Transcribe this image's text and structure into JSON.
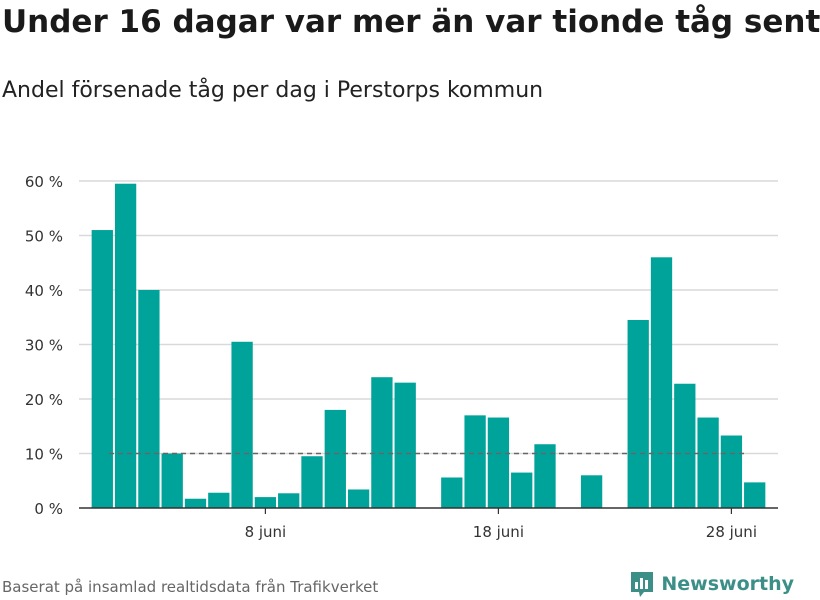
{
  "header": {
    "title": "Under 16 dagar var mer än var tionde tåg sent",
    "subtitle": "Andel försenade tåg per dag i Perstorps kommun"
  },
  "footer": {
    "source": "Baserat på insamlad realtidsdata från Trafikverket",
    "brand": "Newsworthy",
    "brand_icon": "bar-chart-logo-icon"
  },
  "colors": {
    "bar": "#00a399",
    "grid": "#d9d9d9",
    "reference_line": "#666666",
    "brand": "#3b8f87"
  },
  "chart_data": {
    "type": "bar",
    "title": "Under 16 dagar var mer än var tionde tåg sent",
    "subtitle": "Andel försenade tåg per dag i Perstorps kommun",
    "xlabel": "",
    "ylabel": "",
    "ylim": [
      0,
      60
    ],
    "yticks": [
      {
        "value": 0,
        "label": "0 %"
      },
      {
        "value": 10,
        "label": "10 %"
      },
      {
        "value": 20,
        "label": "20 %"
      },
      {
        "value": 30,
        "label": "30 %"
      },
      {
        "value": 40,
        "label": "40 %"
      },
      {
        "value": 50,
        "label": "50 %"
      },
      {
        "value": 60,
        "label": "60 %"
      }
    ],
    "xlim": [
      "2020-05-31",
      "2020-06-30"
    ],
    "xticks": [
      {
        "date": "2020-06-08",
        "label": "8 juni"
      },
      {
        "date": "2020-06-18",
        "label": "18 juni"
      },
      {
        "date": "2020-06-28",
        "label": "28 juni"
      }
    ],
    "reference_line": {
      "value": 10,
      "style": "dashed"
    },
    "grid": true,
    "legend": "none",
    "series": [
      {
        "data": [
          {
            "x": "2020-06-01",
            "y": 51
          },
          {
            "x": "2020-06-02",
            "y": 59.5
          },
          {
            "x": "2020-06-03",
            "y": 40
          },
          {
            "x": "2020-06-04",
            "y": 10
          },
          {
            "x": "2020-06-05",
            "y": 1.7
          },
          {
            "x": "2020-06-06",
            "y": 2.8
          },
          {
            "x": "2020-06-07",
            "y": 30.5
          },
          {
            "x": "2020-06-08",
            "y": 2
          },
          {
            "x": "2020-06-09",
            "y": 2.7
          },
          {
            "x": "2020-06-10",
            "y": 9.5
          },
          {
            "x": "2020-06-11",
            "y": 18
          },
          {
            "x": "2020-06-12",
            "y": 3.4
          },
          {
            "x": "2020-06-13",
            "y": 24
          },
          {
            "x": "2020-06-14",
            "y": 23
          },
          {
            "x": "2020-06-16",
            "y": 5.6
          },
          {
            "x": "2020-06-17",
            "y": 17
          },
          {
            "x": "2020-06-18",
            "y": 16.6
          },
          {
            "x": "2020-06-19",
            "y": 6.5
          },
          {
            "x": "2020-06-20",
            "y": 11.7
          },
          {
            "x": "2020-06-22",
            "y": 6
          },
          {
            "x": "2020-06-24",
            "y": 34.5
          },
          {
            "x": "2020-06-25",
            "y": 46
          },
          {
            "x": "2020-06-26",
            "y": 22.8
          },
          {
            "x": "2020-06-27",
            "y": 16.6
          },
          {
            "x": "2020-06-28",
            "y": 13.3
          },
          {
            "x": "2020-06-29",
            "y": 4.7
          }
        ]
      }
    ]
  }
}
